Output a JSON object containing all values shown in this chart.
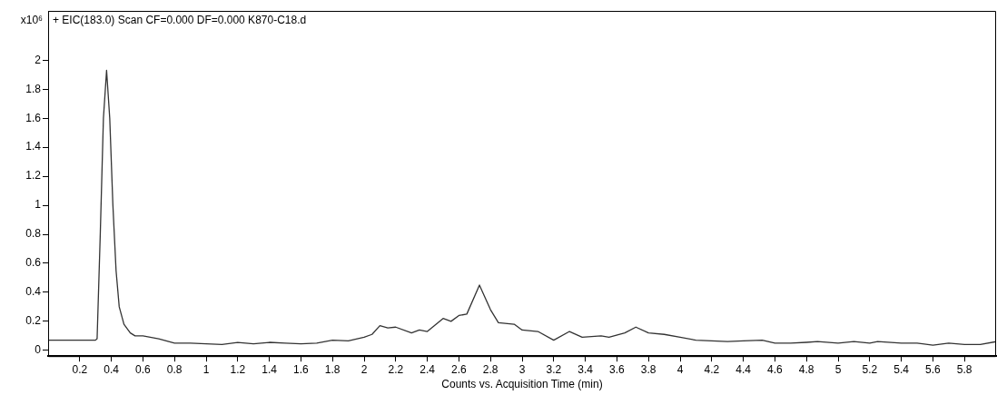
{
  "chart_data": {
    "type": "line",
    "title": "+ EIC(183.0) Scan CF=0.000 DF=0.000 K870-C18.d",
    "ylabel": "x10⁶",
    "xlabel": "Counts vs. Acquisition Time (min)",
    "x": [
      0,
      0.1,
      0.2,
      0.3,
      0.31,
      0.33,
      0.35,
      0.37,
      0.39,
      0.41,
      0.43,
      0.45,
      0.48,
      0.52,
      0.55,
      0.6,
      0.7,
      0.8,
      0.9,
      1.0,
      1.1,
      1.2,
      1.3,
      1.4,
      1.5,
      1.6,
      1.7,
      1.8,
      1.9,
      2.0,
      2.05,
      2.1,
      2.15,
      2.2,
      2.3,
      2.35,
      2.4,
      2.5,
      2.55,
      2.6,
      2.65,
      2.73,
      2.8,
      2.85,
      2.95,
      3.0,
      3.1,
      3.2,
      3.3,
      3.38,
      3.5,
      3.55,
      3.65,
      3.72,
      3.8,
      3.9,
      4.0,
      4.1,
      4.2,
      4.3,
      4.4,
      4.52,
      4.6,
      4.7,
      4.8,
      4.87,
      5.0,
      5.1,
      5.2,
      5.25,
      5.4,
      5.5,
      5.6,
      5.7,
      5.8,
      5.9,
      6.0
    ],
    "series": [
      {
        "color": "#333333",
        "values": [
          0.07,
          0.07,
          0.07,
          0.07,
          0.08,
          0.8,
          1.6,
          1.93,
          1.6,
          1.0,
          0.55,
          0.3,
          0.18,
          0.12,
          0.1,
          0.1,
          0.08,
          0.05,
          0.05,
          0.045,
          0.04,
          0.055,
          0.045,
          0.055,
          0.05,
          0.045,
          0.05,
          0.07,
          0.065,
          0.09,
          0.11,
          0.17,
          0.155,
          0.16,
          0.12,
          0.14,
          0.13,
          0.22,
          0.2,
          0.24,
          0.25,
          0.45,
          0.28,
          0.19,
          0.18,
          0.14,
          0.13,
          0.07,
          0.13,
          0.09,
          0.1,
          0.09,
          0.12,
          0.16,
          0.12,
          0.11,
          0.09,
          0.07,
          0.065,
          0.06,
          0.065,
          0.07,
          0.05,
          0.05,
          0.055,
          0.06,
          0.05,
          0.06,
          0.05,
          0.06,
          0.05,
          0.05,
          0.035,
          0.05,
          0.04,
          0.04,
          0.06
        ]
      }
    ],
    "xlim": [
      0,
      6
    ],
    "ylim": [
      -0.04,
      2.34
    ],
    "xticks": [
      0.2,
      0.4,
      0.6,
      0.8,
      1,
      1.2,
      1.4,
      1.6,
      1.8,
      2,
      2.2,
      2.4,
      2.6,
      2.8,
      3,
      3.2,
      3.4,
      3.6,
      3.8,
      4,
      4.2,
      4.4,
      4.6,
      4.8,
      5,
      5.2,
      5.4,
      5.6,
      5.8
    ],
    "yticks": [
      0,
      0.2,
      0.4,
      0.6,
      0.8,
      1,
      1.2,
      1.4,
      1.6,
      1.8,
      2
    ],
    "grid": false,
    "legend": false,
    "marker": "none",
    "line_style": "solid"
  }
}
